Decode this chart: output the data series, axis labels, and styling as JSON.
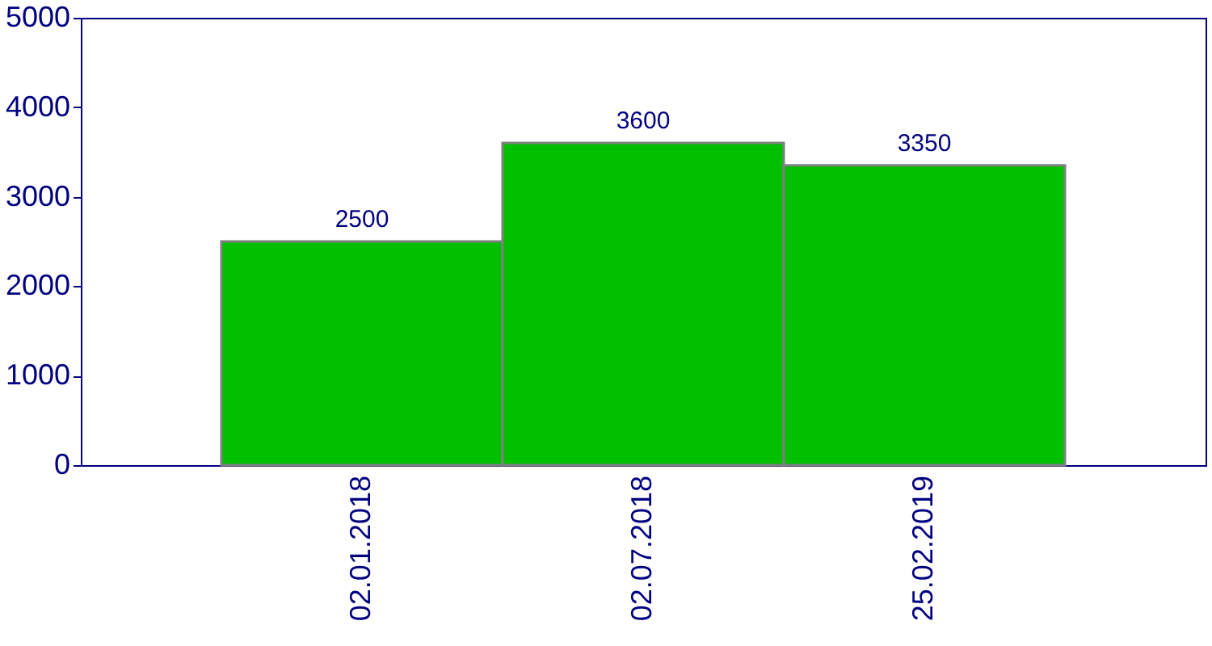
{
  "chart_data": {
    "type": "bar",
    "categories": [
      "02.01.2018",
      "02.07.2018",
      "25.02.2019"
    ],
    "values": [
      2500,
      3600,
      3350
    ],
    "color": "#00c000",
    "ylim": [
      0,
      5000
    ],
    "yticks": [
      0,
      1000,
      2000,
      3000,
      4000,
      5000
    ],
    "data_labels": true
  }
}
